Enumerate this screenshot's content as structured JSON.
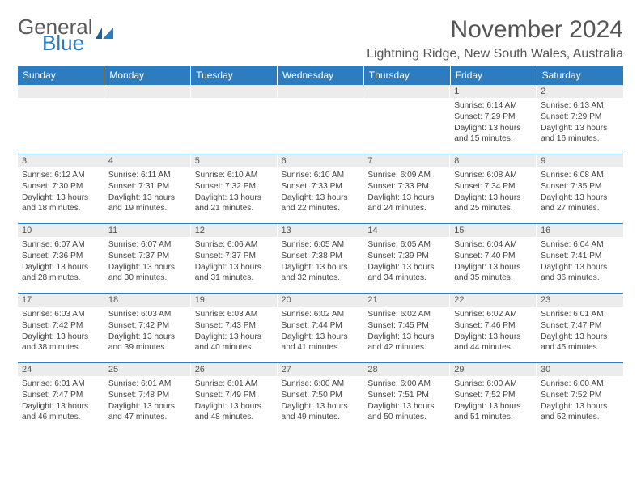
{
  "logo": {
    "word1": "General",
    "word2": "Blue",
    "flag_color": "#2d7cc0"
  },
  "header": {
    "month_title": "November 2024",
    "location": "Lightning Ridge, New South Wales, Australia"
  },
  "colors": {
    "header_bg": "#2d7cc0",
    "header_text": "#ffffff",
    "daynum_bg": "#ececec",
    "border": "#2d7cc0",
    "body_text": "#444444"
  },
  "day_headers": [
    "Sunday",
    "Monday",
    "Tuesday",
    "Wednesday",
    "Thursday",
    "Friday",
    "Saturday"
  ],
  "weeks": [
    [
      {
        "n": "",
        "sr": "",
        "ss": "",
        "dl": ""
      },
      {
        "n": "",
        "sr": "",
        "ss": "",
        "dl": ""
      },
      {
        "n": "",
        "sr": "",
        "ss": "",
        "dl": ""
      },
      {
        "n": "",
        "sr": "",
        "ss": "",
        "dl": ""
      },
      {
        "n": "",
        "sr": "",
        "ss": "",
        "dl": ""
      },
      {
        "n": "1",
        "sr": "Sunrise: 6:14 AM",
        "ss": "Sunset: 7:29 PM",
        "dl": "Daylight: 13 hours and 15 minutes."
      },
      {
        "n": "2",
        "sr": "Sunrise: 6:13 AM",
        "ss": "Sunset: 7:29 PM",
        "dl": "Daylight: 13 hours and 16 minutes."
      }
    ],
    [
      {
        "n": "3",
        "sr": "Sunrise: 6:12 AM",
        "ss": "Sunset: 7:30 PM",
        "dl": "Daylight: 13 hours and 18 minutes."
      },
      {
        "n": "4",
        "sr": "Sunrise: 6:11 AM",
        "ss": "Sunset: 7:31 PM",
        "dl": "Daylight: 13 hours and 19 minutes."
      },
      {
        "n": "5",
        "sr": "Sunrise: 6:10 AM",
        "ss": "Sunset: 7:32 PM",
        "dl": "Daylight: 13 hours and 21 minutes."
      },
      {
        "n": "6",
        "sr": "Sunrise: 6:10 AM",
        "ss": "Sunset: 7:33 PM",
        "dl": "Daylight: 13 hours and 22 minutes."
      },
      {
        "n": "7",
        "sr": "Sunrise: 6:09 AM",
        "ss": "Sunset: 7:33 PM",
        "dl": "Daylight: 13 hours and 24 minutes."
      },
      {
        "n": "8",
        "sr": "Sunrise: 6:08 AM",
        "ss": "Sunset: 7:34 PM",
        "dl": "Daylight: 13 hours and 25 minutes."
      },
      {
        "n": "9",
        "sr": "Sunrise: 6:08 AM",
        "ss": "Sunset: 7:35 PM",
        "dl": "Daylight: 13 hours and 27 minutes."
      }
    ],
    [
      {
        "n": "10",
        "sr": "Sunrise: 6:07 AM",
        "ss": "Sunset: 7:36 PM",
        "dl": "Daylight: 13 hours and 28 minutes."
      },
      {
        "n": "11",
        "sr": "Sunrise: 6:07 AM",
        "ss": "Sunset: 7:37 PM",
        "dl": "Daylight: 13 hours and 30 minutes."
      },
      {
        "n": "12",
        "sr": "Sunrise: 6:06 AM",
        "ss": "Sunset: 7:37 PM",
        "dl": "Daylight: 13 hours and 31 minutes."
      },
      {
        "n": "13",
        "sr": "Sunrise: 6:05 AM",
        "ss": "Sunset: 7:38 PM",
        "dl": "Daylight: 13 hours and 32 minutes."
      },
      {
        "n": "14",
        "sr": "Sunrise: 6:05 AM",
        "ss": "Sunset: 7:39 PM",
        "dl": "Daylight: 13 hours and 34 minutes."
      },
      {
        "n": "15",
        "sr": "Sunrise: 6:04 AM",
        "ss": "Sunset: 7:40 PM",
        "dl": "Daylight: 13 hours and 35 minutes."
      },
      {
        "n": "16",
        "sr": "Sunrise: 6:04 AM",
        "ss": "Sunset: 7:41 PM",
        "dl": "Daylight: 13 hours and 36 minutes."
      }
    ],
    [
      {
        "n": "17",
        "sr": "Sunrise: 6:03 AM",
        "ss": "Sunset: 7:42 PM",
        "dl": "Daylight: 13 hours and 38 minutes."
      },
      {
        "n": "18",
        "sr": "Sunrise: 6:03 AM",
        "ss": "Sunset: 7:42 PM",
        "dl": "Daylight: 13 hours and 39 minutes."
      },
      {
        "n": "19",
        "sr": "Sunrise: 6:03 AM",
        "ss": "Sunset: 7:43 PM",
        "dl": "Daylight: 13 hours and 40 minutes."
      },
      {
        "n": "20",
        "sr": "Sunrise: 6:02 AM",
        "ss": "Sunset: 7:44 PM",
        "dl": "Daylight: 13 hours and 41 minutes."
      },
      {
        "n": "21",
        "sr": "Sunrise: 6:02 AM",
        "ss": "Sunset: 7:45 PM",
        "dl": "Daylight: 13 hours and 42 minutes."
      },
      {
        "n": "22",
        "sr": "Sunrise: 6:02 AM",
        "ss": "Sunset: 7:46 PM",
        "dl": "Daylight: 13 hours and 44 minutes."
      },
      {
        "n": "23",
        "sr": "Sunrise: 6:01 AM",
        "ss": "Sunset: 7:47 PM",
        "dl": "Daylight: 13 hours and 45 minutes."
      }
    ],
    [
      {
        "n": "24",
        "sr": "Sunrise: 6:01 AM",
        "ss": "Sunset: 7:47 PM",
        "dl": "Daylight: 13 hours and 46 minutes."
      },
      {
        "n": "25",
        "sr": "Sunrise: 6:01 AM",
        "ss": "Sunset: 7:48 PM",
        "dl": "Daylight: 13 hours and 47 minutes."
      },
      {
        "n": "26",
        "sr": "Sunrise: 6:01 AM",
        "ss": "Sunset: 7:49 PM",
        "dl": "Daylight: 13 hours and 48 minutes."
      },
      {
        "n": "27",
        "sr": "Sunrise: 6:00 AM",
        "ss": "Sunset: 7:50 PM",
        "dl": "Daylight: 13 hours and 49 minutes."
      },
      {
        "n": "28",
        "sr": "Sunrise: 6:00 AM",
        "ss": "Sunset: 7:51 PM",
        "dl": "Daylight: 13 hours and 50 minutes."
      },
      {
        "n": "29",
        "sr": "Sunrise: 6:00 AM",
        "ss": "Sunset: 7:52 PM",
        "dl": "Daylight: 13 hours and 51 minutes."
      },
      {
        "n": "30",
        "sr": "Sunrise: 6:00 AM",
        "ss": "Sunset: 7:52 PM",
        "dl": "Daylight: 13 hours and 52 minutes."
      }
    ]
  ]
}
